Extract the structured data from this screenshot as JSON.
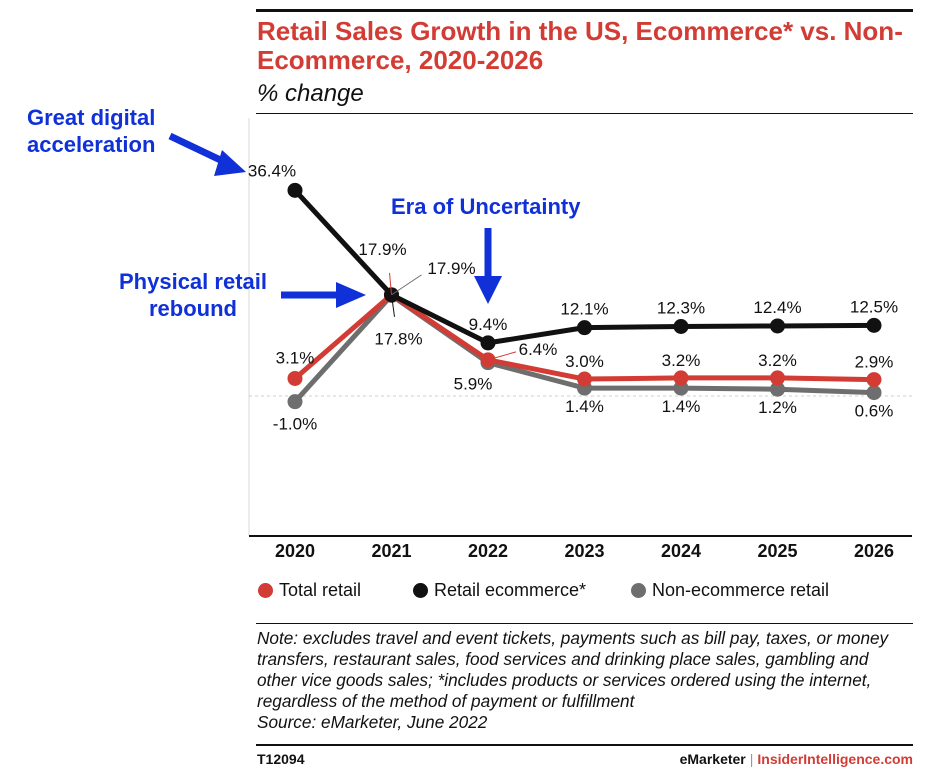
{
  "title": "Retail Sales Growth in the US, Ecommerce* vs. Non-Ecommerce, 2020-2026",
  "subtitle": "% change",
  "chart_data": {
    "type": "line",
    "x": [
      "2020",
      "2021",
      "2022",
      "2023",
      "2024",
      "2025",
      "2026"
    ],
    "ylim": [
      -10,
      40
    ],
    "series": [
      {
        "name": "Retail ecommerce*",
        "color": "#111111",
        "values": [
          36.4,
          17.9,
          9.4,
          12.1,
          12.3,
          12.4,
          12.5
        ],
        "labels": [
          "36.4%",
          "17.9%",
          "9.4%",
          "12.1%",
          "12.3%",
          "12.4%",
          "12.5%"
        ]
      },
      {
        "name": "Total retail",
        "color": "#d23c34",
        "values": [
          3.1,
          17.9,
          6.4,
          3.0,
          3.2,
          3.2,
          2.9
        ],
        "labels": [
          "3.1%",
          "17.9%",
          "6.4%",
          "3.0%",
          "3.2%",
          "3.2%",
          "2.9%"
        ]
      },
      {
        "name": "Non-ecommerce retail",
        "color": "#6e6e6e",
        "values": [
          -1.0,
          17.8,
          5.9,
          1.4,
          1.4,
          1.2,
          0.6
        ],
        "labels": [
          "-1.0%",
          "17.8%",
          "5.9%",
          "1.4%",
          "1.4%",
          "1.2%",
          "0.6%"
        ]
      }
    ]
  },
  "legend": {
    "total": "Total retail",
    "ecommerce": "Retail ecommerce*",
    "non_ecommerce": "Non-ecommerce retail"
  },
  "annotations": {
    "digital_line1": "Great digital",
    "digital_line2": "acceleration",
    "uncertainty": "Era of Uncertainty",
    "rebound_line1": "Physical retail",
    "rebound_line2": "rebound"
  },
  "note": "Note: excludes travel and event tickets, payments such as bill pay, taxes, or money transfers, restaurant sales, food services and drinking place sales, gambling and other vice goods sales; *includes products or services ordered using the internet, regardless of the method of payment or fulfillment",
  "source": "Source: eMarketer, June 2022",
  "chart_id": "T12094",
  "brand": {
    "emarketer": "eMarketer",
    "separator": "|",
    "insider": "InsiderIntelligence.com"
  },
  "colors": {
    "accent": "#d23c34",
    "annotation": "#1030d8"
  }
}
